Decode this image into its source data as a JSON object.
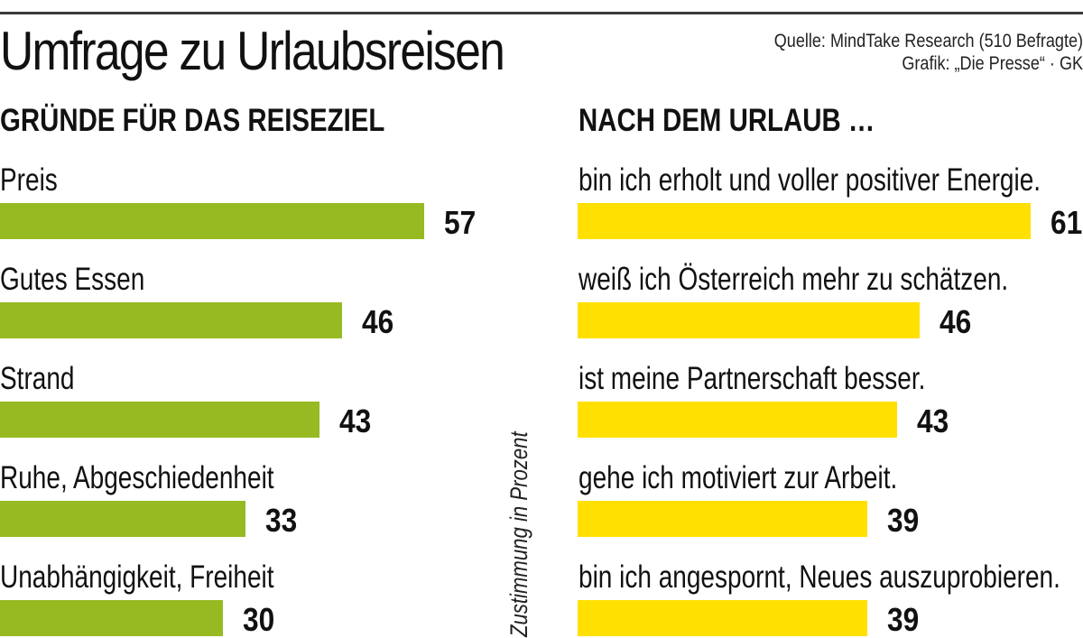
{
  "header": {
    "title": "Umfrage zu Urlaubsreisen",
    "source_line1": "Quelle: MindTake Research (510 Befragte)",
    "source_line2": "Grafik: „Die Presse“ · GK"
  },
  "axis_note": "Zustimmung in Prozent",
  "colors": {
    "left_bar": "#97ba22",
    "right_bar": "#ffe000"
  },
  "chart_data": [
    {
      "type": "bar",
      "orientation": "horizontal",
      "title": "GRÜNDE FÜR DAS REISEZIEL",
      "categories": [
        "Preis",
        "Gutes Essen",
        "Strand",
        "Ruhe, Abgeschiedenheit",
        "Unabhängigkeit, Freiheit"
      ],
      "values": [
        57,
        46,
        43,
        33,
        30
      ],
      "xlabel": "Zustimmung in Prozent",
      "ylabel": "",
      "xlim": [
        0,
        100
      ],
      "grid": false,
      "color": "#97ba22"
    },
    {
      "type": "bar",
      "orientation": "horizontal",
      "title": "NACH DEM URLAUB …",
      "categories": [
        "bin ich erholt und voller positiver Energie.",
        "weiß ich Österreich mehr zu schätzen.",
        "ist meine Partnerschaft besser.",
        "gehe ich motiviert zur Arbeit.",
        "bin ich angespornt, Neues auszuprobieren."
      ],
      "values": [
        61,
        46,
        43,
        39,
        39
      ],
      "xlabel": "Zustimmung in Prozent",
      "ylabel": "",
      "xlim": [
        0,
        100
      ],
      "grid": false,
      "color": "#ffe000"
    }
  ]
}
